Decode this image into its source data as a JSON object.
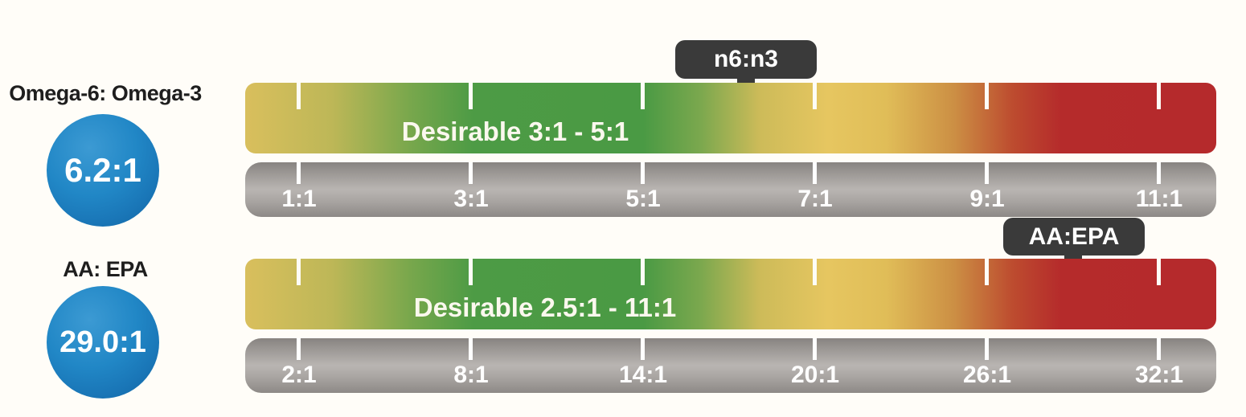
{
  "colors": {
    "background": "#fffdf8",
    "green_zone": "#4a9a44",
    "gold_zone": "#e3c35d",
    "red_zone": "#b52a2c",
    "scale_gray": "#a5a19e",
    "circle_blue": "#1e81c2",
    "marker_dark": "#3a3a3a"
  },
  "chart_data": [
    {
      "type": "gauge",
      "title": "Omega-6: Omega-3",
      "value": 6.2,
      "value_label": "6.2:1",
      "marker_label": "n6:n3",
      "desirable_range_label": "Desirable 3:1 - 5:1",
      "desirable_range": [
        3,
        5
      ],
      "axis_range": [
        1,
        11
      ],
      "axis_ticks": [
        1,
        3,
        5,
        7,
        9,
        11
      ],
      "axis_tick_labels": [
        "1:1",
        "3:1",
        "5:1",
        "7:1",
        "9:1",
        "11:1"
      ],
      "color_zones": "yellow to green (desirable) to yellow to orange to red gradient"
    },
    {
      "type": "gauge",
      "title": "AA: EPA",
      "value": 29.0,
      "value_label": "29.0:1",
      "marker_label": "AA:EPA",
      "desirable_range_label": "Desirable 2.5:1 - 11:1",
      "desirable_range": [
        2.5,
        11
      ],
      "axis_range": [
        2,
        32
      ],
      "axis_ticks": [
        2,
        8,
        14,
        20,
        26,
        32
      ],
      "axis_tick_labels": [
        "2:1",
        "8:1",
        "14:1",
        "20:1",
        "26:1",
        "32:1"
      ],
      "color_zones": "yellow to green (desirable) to yellow to orange to red gradient"
    }
  ]
}
